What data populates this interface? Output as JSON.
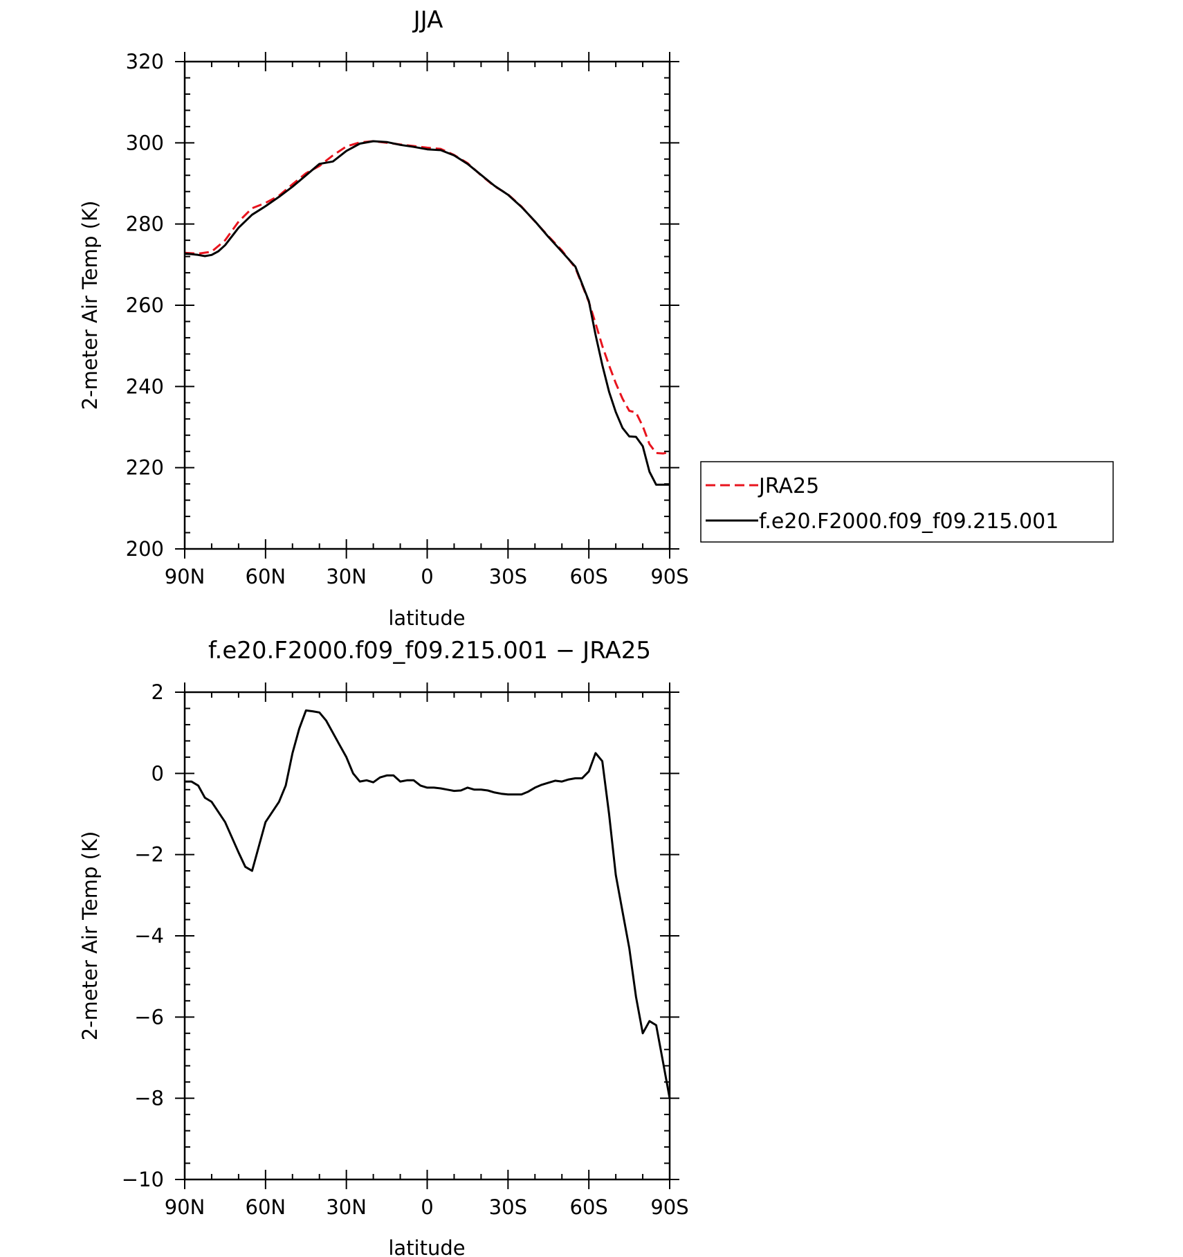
{
  "chart_data": [
    {
      "type": "line",
      "title": "JJA",
      "xlabel": "latitude",
      "ylabel": "2-meter Air Temp (K)",
      "x_tick_labels": [
        "90N",
        "60N",
        "30N",
        "0",
        "30S",
        "60S",
        "90S"
      ],
      "x_tick_values": [
        90,
        60,
        30,
        0,
        -30,
        -60,
        -90
      ],
      "y_tick_values": [
        200,
        220,
        240,
        260,
        280,
        300,
        320
      ],
      "y_tick_labels": [
        "200",
        "220",
        "240",
        "260",
        "280",
        "300",
        "320"
      ],
      "xlim": [
        90,
        -90
      ],
      "ylim": [
        200,
        320
      ],
      "legend_position": "right",
      "series": [
        {
          "name": "JRA25",
          "color": "#e8141e",
          "style": "dashed",
          "x": [
            90,
            85,
            80,
            75,
            70,
            65,
            60,
            55,
            50,
            45,
            40,
            35,
            30,
            25,
            20,
            15,
            10,
            5,
            0,
            -5,
            -10,
            -15,
            -20,
            -25,
            -30,
            -35,
            -40,
            -45,
            -50,
            -55,
            -60,
            -62.5,
            -65,
            -67.5,
            -70,
            -72.5,
            -75,
            -77.5,
            -80,
            -82.5,
            -85,
            -87.5,
            -90
          ],
          "y": [
            272.9,
            272.7,
            273.2,
            276.0,
            280.6,
            283.9,
            285.2,
            287.0,
            289.8,
            292.5,
            294.3,
            296.9,
            299.1,
            300.1,
            300.4,
            300.0,
            299.6,
            299.2,
            298.8,
            298.5,
            297.0,
            295.0,
            292.0,
            289.3,
            287.3,
            284.3,
            280.6,
            277.0,
            273.5,
            269.2,
            260.8,
            255.5,
            250.0,
            245.2,
            240.8,
            237.0,
            234.0,
            233.6,
            230.2,
            225.8,
            223.6,
            223.5,
            223.8
          ]
        },
        {
          "name": "f.e20.F2000.f09_f09.215.001",
          "color": "#000000",
          "style": "solid",
          "x": [
            90,
            87.5,
            85,
            82.5,
            80,
            77.5,
            75,
            70,
            65,
            60,
            55,
            50,
            45,
            40,
            35,
            30,
            25,
            20,
            15,
            10,
            5,
            0,
            -5,
            -10,
            -15,
            -20,
            -25,
            -30,
            -35,
            -40,
            -45,
            -50,
            -55,
            -60,
            -62.5,
            -65,
            -67.5,
            -70,
            -72.5,
            -75,
            -77.5,
            -80,
            -82.5,
            -85,
            -87.5,
            -90
          ],
          "y": [
            272.7,
            272.6,
            272.4,
            272.1,
            272.4,
            273.3,
            274.8,
            279.1,
            282.3,
            284.4,
            286.7,
            289.2,
            292.0,
            294.8,
            295.4,
            298.0,
            299.8,
            300.4,
            300.2,
            299.5,
            299.0,
            298.4,
            298.2,
            296.9,
            294.8,
            292.1,
            289.4,
            287.2,
            284.2,
            280.7,
            276.8,
            273.2,
            269.5,
            261.0,
            252.7,
            245.3,
            238.7,
            233.7,
            229.8,
            227.7,
            227.6,
            225.3,
            219.0,
            215.8,
            215.8,
            215.8
          ]
        }
      ]
    },
    {
      "type": "line",
      "title": "f.e20.F2000.f09_f09.215.001 − JRA25",
      "xlabel": "latitude",
      "ylabel": "2-meter Air Temp (K)",
      "x_tick_labels": [
        "90N",
        "60N",
        "30N",
        "0",
        "30S",
        "60S",
        "90S"
      ],
      "x_tick_values": [
        90,
        60,
        30,
        0,
        -30,
        -60,
        -90
      ],
      "y_tick_values": [
        -10,
        -8,
        -6,
        -4,
        -2,
        0,
        2
      ],
      "y_tick_labels": [
        "−10",
        "−8",
        "−6",
        "−4",
        "−2",
        "0",
        "2"
      ],
      "xlim": [
        90,
        -90
      ],
      "ylim": [
        -10,
        2
      ],
      "series": [
        {
          "color": "#000000",
          "style": "solid",
          "x": [
            90,
            87.5,
            85,
            82.5,
            80,
            75,
            70,
            67.5,
            65,
            62.5,
            60,
            55,
            52.5,
            50,
            47.5,
            45,
            42.5,
            40,
            37.5,
            35,
            32.5,
            30,
            27.5,
            25,
            22.5,
            20,
            17.5,
            15,
            12.5,
            10,
            7.5,
            5,
            2.5,
            0,
            -2.5,
            -5,
            -7.5,
            -10,
            -12.5,
            -15,
            -17.5,
            -20,
            -22.5,
            -25,
            -27.5,
            -30,
            -32.5,
            -35,
            -37.5,
            -40,
            -42.5,
            -45,
            -47.5,
            -50,
            -52.5,
            -55,
            -57.5,
            -60,
            -62.5,
            -65,
            -67.5,
            -70,
            -72.5,
            -75,
            -77.5,
            -80,
            -82.5,
            -85,
            -87.5,
            -90
          ],
          "y": [
            -0.2,
            -0.2,
            -0.3,
            -0.6,
            -0.7,
            -1.2,
            -1.95,
            -2.3,
            -2.4,
            -1.8,
            -1.2,
            -0.7,
            -0.3,
            0.5,
            1.1,
            1.55,
            1.53,
            1.5,
            1.3,
            1.0,
            0.7,
            0.4,
            0.0,
            -0.2,
            -0.17,
            -0.22,
            -0.1,
            -0.05,
            -0.05,
            -0.2,
            -0.17,
            -0.17,
            -0.3,
            -0.35,
            -0.35,
            -0.37,
            -0.4,
            -0.43,
            -0.42,
            -0.35,
            -0.4,
            -0.4,
            -0.42,
            -0.47,
            -0.5,
            -0.52,
            -0.52,
            -0.52,
            -0.45,
            -0.35,
            -0.28,
            -0.23,
            -0.18,
            -0.2,
            -0.15,
            -0.12,
            -0.12,
            0.05,
            0.5,
            0.3,
            -1.0,
            -2.5,
            -3.4,
            -4.3,
            -5.5,
            -6.4,
            -6.1,
            -6.2,
            -7.1,
            -8.0
          ]
        }
      ]
    }
  ]
}
